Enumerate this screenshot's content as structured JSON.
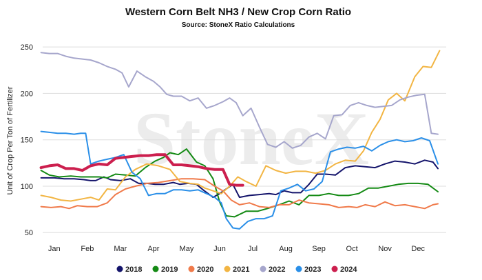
{
  "chart_data": {
    "type": "line",
    "title": "Western Corn Belt NH3 / New Crop Corn Ratio",
    "subtitle": "Source: StoneX Ratio Calculations",
    "ylabel": "Unit of Crop Per Ton of Fertilizer",
    "xlabel": "",
    "watermark": "StoneX",
    "x_ticks": [
      "Jan",
      "Feb",
      "Mar",
      "Apr",
      "May",
      "Jun",
      "Jul",
      "Aug",
      "Sep",
      "Oct",
      "Nov",
      "Dec"
    ],
    "y_ticks": [
      50,
      100,
      150,
      200,
      250
    ],
    "ylim": [
      42,
      262
    ],
    "xlim": [
      -0.35,
      11.85
    ],
    "grid": "horizontal",
    "legend_position": "bottom",
    "series": [
      {
        "name": "2018",
        "color": "#14146b",
        "x": [
          -0.4,
          0,
          0.3,
          0.6,
          0.9,
          1.1,
          1.25,
          1.5,
          1.7,
          2.0,
          2.3,
          2.55,
          2.8,
          3.05,
          3.3,
          3.6,
          3.8,
          4.05,
          4.3,
          4.5,
          4.8,
          5.0,
          5.2,
          5.4,
          5.6,
          5.9,
          6.2,
          6.5,
          6.7,
          6.95,
          7.2,
          7.45,
          7.7,
          7.95,
          8.2,
          8.5,
          8.8,
          9.1,
          9.4,
          9.7,
          10.0,
          10.3,
          10.6,
          10.9,
          11.2,
          11.45,
          11.6
        ],
        "values": [
          109,
          109,
          108,
          108,
          107,
          106,
          106,
          110,
          107,
          106,
          108,
          103,
          103,
          102,
          102,
          104,
          102,
          103,
          102,
          96,
          88,
          92,
          97,
          102,
          88,
          90,
          91,
          92,
          91,
          95,
          93,
          93,
          102,
          113,
          113,
          112,
          120,
          122,
          121,
          120,
          124,
          127,
          126,
          124,
          128,
          126,
          119
        ]
      },
      {
        "name": "2019",
        "color": "#148a14",
        "x": [
          -0.4,
          -0.15,
          0.15,
          0.5,
          0.8,
          1.1,
          1.35,
          1.6,
          1.85,
          2.15,
          2.45,
          2.75,
          3.05,
          3.3,
          3.5,
          3.75,
          4.0,
          4.3,
          4.55,
          4.8,
          5.0,
          5.2,
          5.45,
          5.8,
          6.15,
          6.45,
          6.8,
          7.1,
          7.4,
          7.7,
          8.0,
          8.3,
          8.6,
          8.9,
          9.2,
          9.5,
          9.8,
          10.1,
          10.4,
          10.7,
          11.0,
          11.3,
          11.6
        ],
        "values": [
          117,
          112,
          110,
          111,
          110,
          110,
          110,
          109,
          113,
          112,
          111,
          120,
          127,
          131,
          136,
          134,
          140,
          126,
          122,
          108,
          83,
          68,
          67,
          73,
          73,
          76,
          80,
          84,
          80,
          90,
          90,
          92,
          90,
          90,
          92,
          98,
          98,
          100,
          102,
          103,
          103,
          102,
          94
        ]
      },
      {
        "name": "2020",
        "color": "#f07a4a",
        "x": [
          -0.4,
          -0.1,
          0.2,
          0.45,
          0.7,
          1.0,
          1.3,
          1.6,
          1.85,
          2.15,
          2.45,
          2.8,
          3.15,
          3.5,
          3.85,
          4.2,
          4.55,
          4.85,
          5.1,
          5.35,
          5.6,
          5.9,
          6.2,
          6.5,
          6.8,
          7.1,
          7.4,
          7.7,
          8.0,
          8.3,
          8.6,
          8.9,
          9.15,
          9.4,
          9.7,
          10.0,
          10.3,
          10.6,
          10.9,
          11.2,
          11.45,
          11.6
        ],
        "values": [
          78,
          77,
          78,
          76,
          79,
          78,
          78,
          82,
          91,
          97,
          100,
          103,
          104,
          106,
          108,
          108,
          107,
          100,
          95,
          85,
          80,
          82,
          78,
          77,
          80,
          80,
          85,
          82,
          81,
          80,
          77,
          78,
          77,
          80,
          78,
          83,
          79,
          80,
          78,
          76,
          80,
          81
        ]
      },
      {
        "name": "2021",
        "color": "#f2b543",
        "x": [
          -0.4,
          -0.1,
          0.2,
          0.5,
          0.8,
          1.1,
          1.35,
          1.6,
          1.85,
          2.15,
          2.45,
          2.8,
          3.15,
          3.5,
          3.8,
          4.1,
          4.35,
          4.55,
          4.8,
          5.05,
          5.3,
          5.55,
          5.8,
          6.1,
          6.4,
          6.7,
          7.0,
          7.3,
          7.6,
          7.9,
          8.2,
          8.5,
          8.8,
          9.1,
          9.35,
          9.6,
          9.85,
          10.1,
          10.35,
          10.6,
          10.9,
          11.15,
          11.4,
          11.65
        ],
        "values": [
          90,
          88,
          85,
          84,
          86,
          88,
          85,
          97,
          96,
          110,
          118,
          124,
          122,
          118,
          105,
          103,
          102,
          98,
          95,
          92,
          100,
          110,
          105,
          100,
          122,
          117,
          114,
          116,
          116,
          114,
          117,
          124,
          128,
          127,
          138,
          158,
          172,
          193,
          200,
          192,
          218,
          229,
          228,
          246
        ]
      },
      {
        "name": "2022",
        "color": "#a6a6cc",
        "x": [
          -0.4,
          -0.15,
          0.1,
          0.35,
          0.6,
          0.85,
          1.1,
          1.35,
          1.6,
          1.85,
          2.05,
          2.25,
          2.5,
          2.75,
          3.0,
          3.2,
          3.4,
          3.6,
          3.85,
          4.1,
          4.35,
          4.6,
          4.85,
          5.1,
          5.3,
          5.5,
          5.7,
          5.95,
          6.2,
          6.45,
          6.7,
          6.95,
          7.2,
          7.45,
          7.7,
          7.95,
          8.2,
          8.45,
          8.7,
          8.95,
          9.2,
          9.45,
          9.7,
          9.95,
          10.2,
          10.45,
          10.7,
          10.95,
          11.2,
          11.4,
          11.6
        ],
        "values": [
          244,
          243,
          243,
          240,
          238,
          237,
          236,
          233,
          229,
          226,
          222,
          207,
          224,
          218,
          213,
          207,
          199,
          197,
          197,
          192,
          195,
          184,
          187,
          191,
          195,
          190,
          176,
          184,
          164,
          145,
          142,
          148,
          141,
          144,
          153,
          157,
          151,
          176,
          177,
          187,
          190,
          187,
          185,
          186,
          187,
          193,
          196,
          198,
          199,
          157,
          156
        ]
      },
      {
        "name": "2023",
        "color": "#2a8fe8",
        "x": [
          -0.4,
          -0.15,
          0.1,
          0.35,
          0.6,
          0.8,
          0.95,
          1.1,
          1.35,
          1.6,
          1.85,
          2.1,
          2.35,
          2.6,
          2.85,
          3.1,
          3.35,
          3.6,
          3.85,
          4.1,
          4.35,
          4.6,
          4.85,
          5.05,
          5.2,
          5.4,
          5.6,
          5.85,
          6.1,
          6.35,
          6.6,
          6.85,
          7.1,
          7.35,
          7.6,
          7.85,
          8.1,
          8.35,
          8.6,
          8.85,
          9.1,
          9.35,
          9.6,
          9.85,
          10.1,
          10.35,
          10.6,
          10.85,
          11.1,
          11.35,
          11.6
        ],
        "values": [
          159,
          158,
          157,
          157,
          156,
          157,
          157,
          124,
          127,
          129,
          131,
          134,
          115,
          108,
          90,
          92,
          92,
          96,
          96,
          95,
          96,
          92,
          88,
          82,
          65,
          55,
          54,
          62,
          65,
          65,
          68,
          95,
          98,
          102,
          95,
          97,
          105,
          137,
          140,
          142,
          141,
          143,
          138,
          144,
          148,
          150,
          148,
          149,
          152,
          149,
          124
        ]
      },
      {
        "name": "2024",
        "color": "#cc1f4e",
        "x": [
          -0.4,
          -0.15,
          0.1,
          0.35,
          0.6,
          0.85,
          1.1,
          1.35,
          1.6,
          1.85,
          2.1,
          2.35,
          2.6,
          2.85,
          3.1,
          3.35,
          3.6,
          3.85,
          4.1,
          4.35,
          4.6,
          4.85,
          5.1,
          5.3,
          5.5,
          5.7
        ],
        "values": [
          120,
          122,
          123,
          119,
          119,
          117,
          122,
          124,
          123,
          130,
          131,
          132,
          133,
          133,
          134,
          134,
          123,
          123,
          122,
          121,
          119,
          118,
          118,
          102,
          101,
          101
        ]
      }
    ]
  }
}
